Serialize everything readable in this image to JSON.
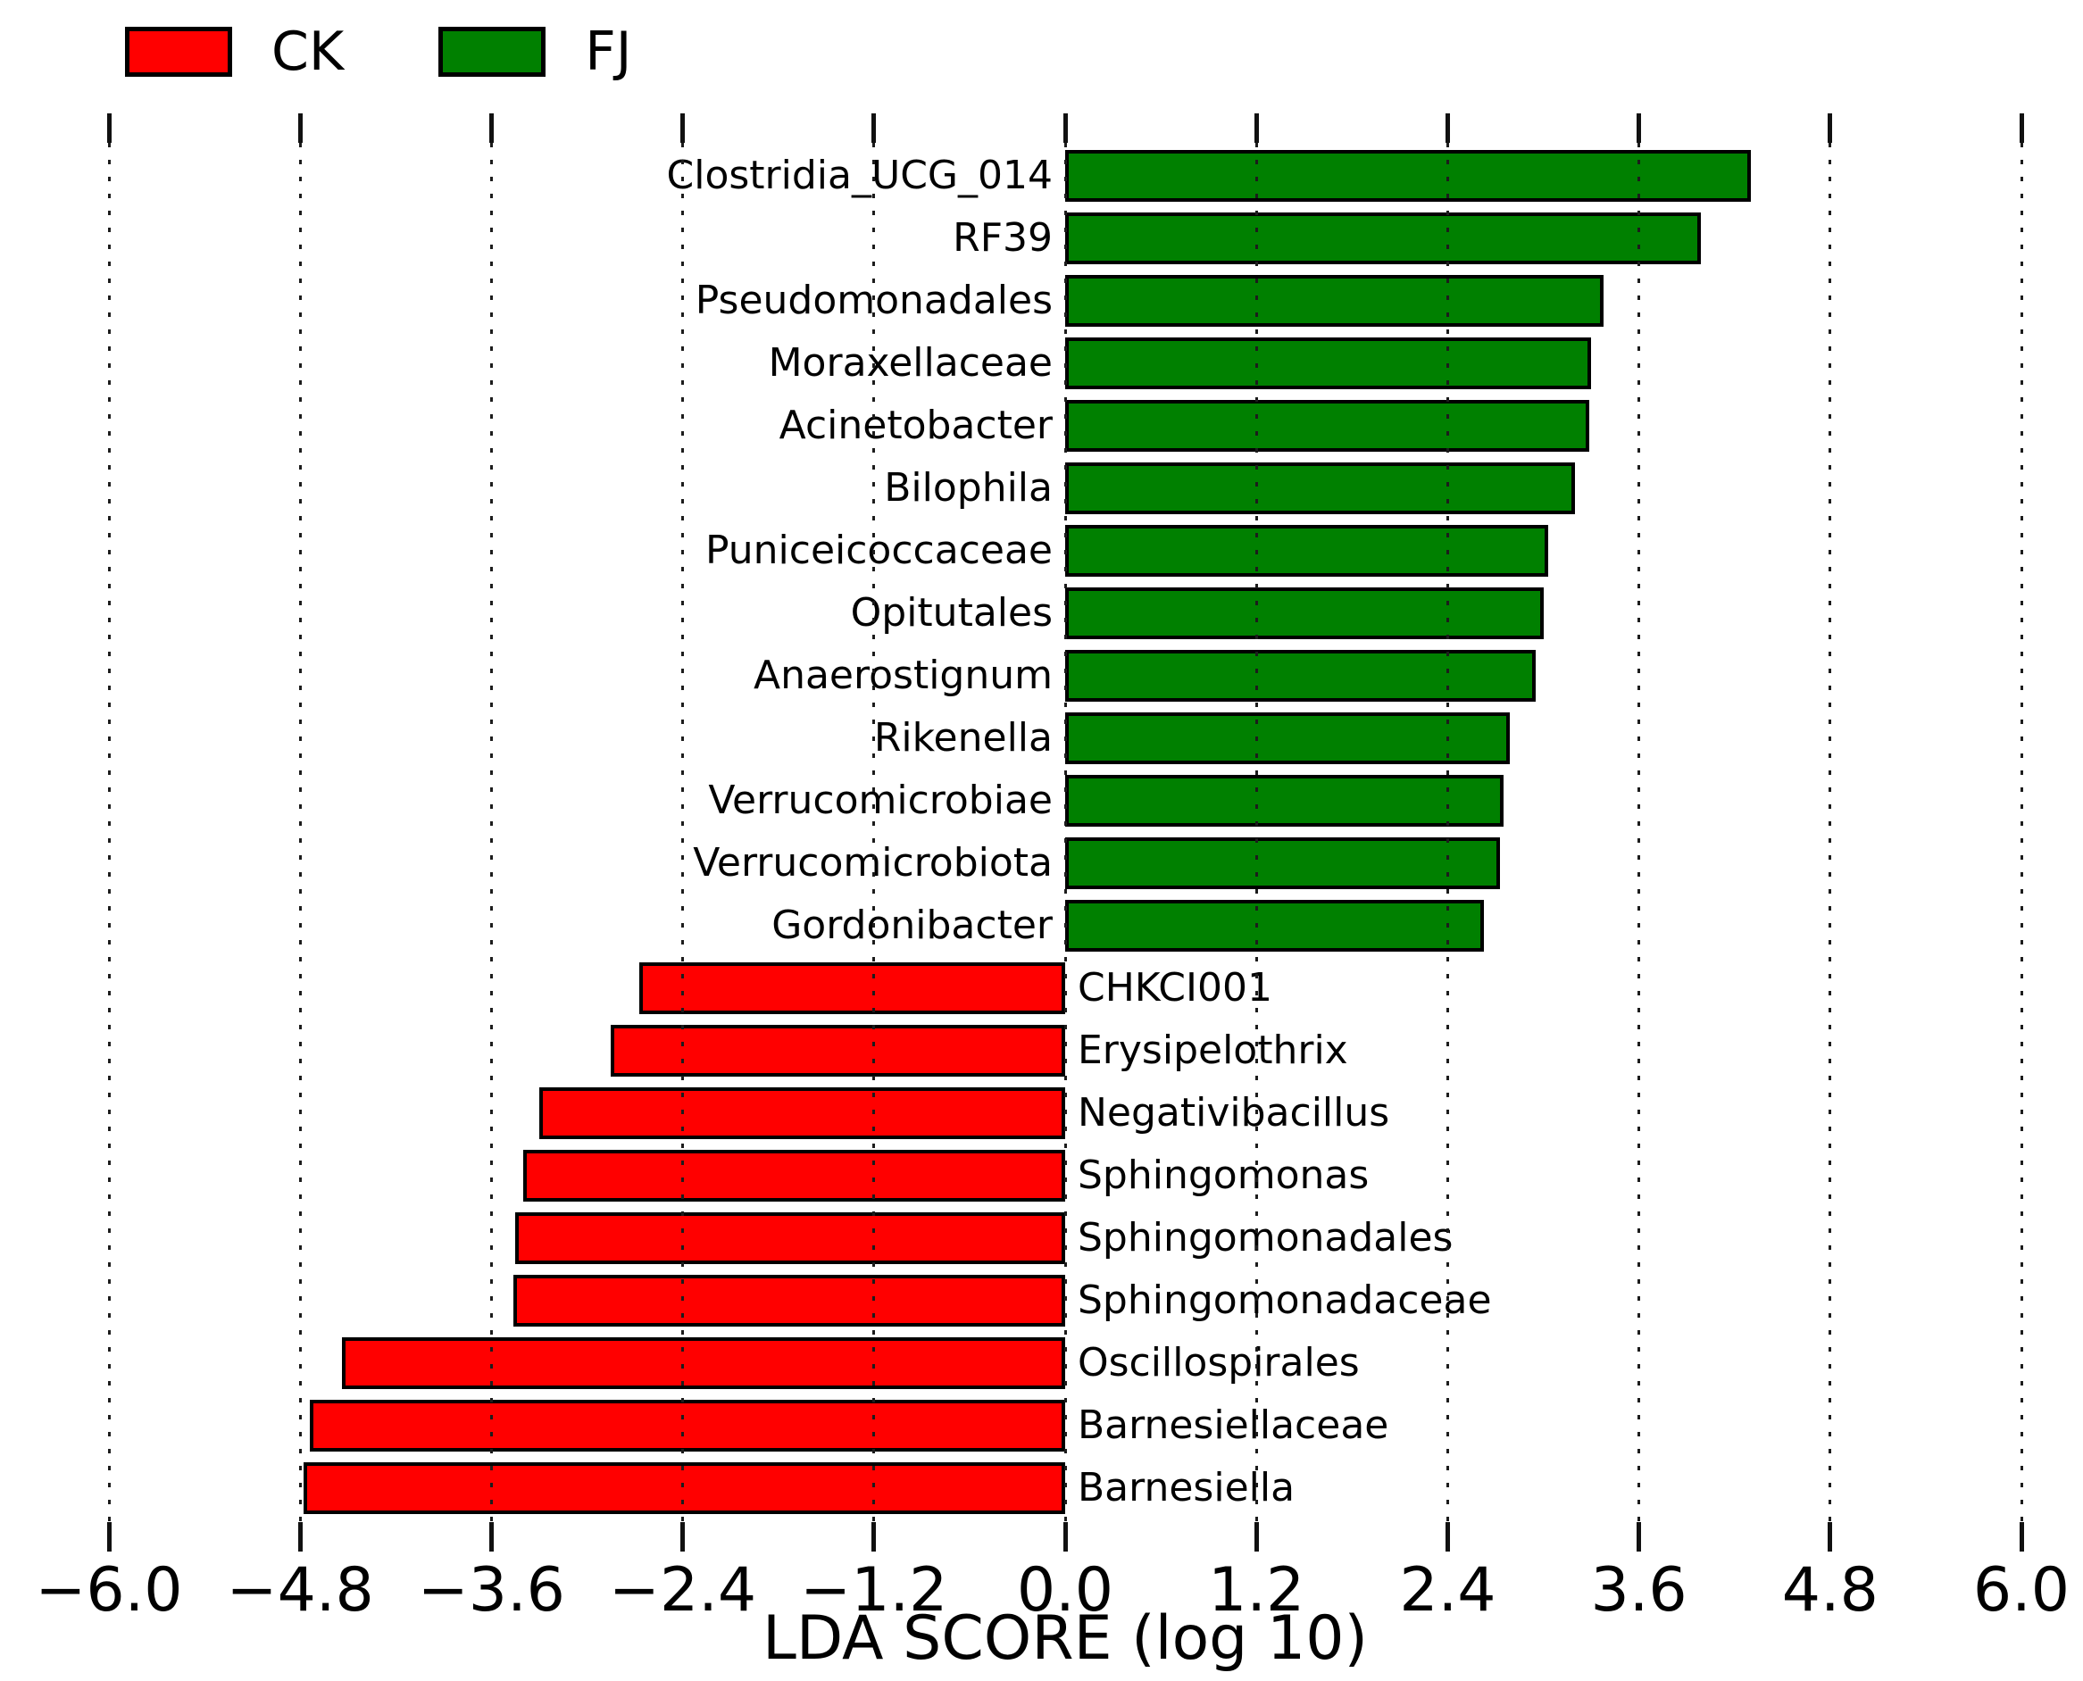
{
  "legend": {
    "items": [
      {
        "label": "CK",
        "color": "#ff0000"
      },
      {
        "label": "FJ",
        "color": "#008000"
      }
    ]
  },
  "chart_data": {
    "type": "bar",
    "orientation": "horizontal",
    "title": "",
    "xlabel": "LDA SCORE (log 10)",
    "ylabel": "",
    "xlim": [
      -6.0,
      6.0
    ],
    "xticks": [
      -6.0,
      -4.8,
      -3.6,
      -2.4,
      -1.2,
      0.0,
      1.2,
      2.4,
      3.6,
      4.8,
      6.0
    ],
    "xtick_labels": [
      "−6.0",
      "−4.8",
      "−3.6",
      "−2.4",
      "−1.2",
      "0.0",
      "1.2",
      "2.4",
      "3.6",
      "4.8",
      "6.0"
    ],
    "grid": "dotted-vertical",
    "legend_position": "top-left",
    "bar_edge_color": "#000000",
    "groups": {
      "CK": {
        "color": "#ff0000",
        "direction": "negative"
      },
      "FJ": {
        "color": "#008000",
        "direction": "positive"
      }
    },
    "bars": [
      {
        "label": "Clostridia_UCG_014",
        "group": "FJ",
        "value": 4.3
      },
      {
        "label": "RF39",
        "group": "FJ",
        "value": 3.99
      },
      {
        "label": "Pseudomonadales",
        "group": "FJ",
        "value": 3.38
      },
      {
        "label": "Moraxellaceae",
        "group": "FJ",
        "value": 3.3
      },
      {
        "label": "Acinetobacter",
        "group": "FJ",
        "value": 3.29
      },
      {
        "label": "Bilophila",
        "group": "FJ",
        "value": 3.2
      },
      {
        "label": "Puniceicoccaceae",
        "group": "FJ",
        "value": 3.03
      },
      {
        "label": "Opitutales",
        "group": "FJ",
        "value": 3.0
      },
      {
        "label": "Anaerostignum",
        "group": "FJ",
        "value": 2.95
      },
      {
        "label": "Rikenella",
        "group": "FJ",
        "value": 2.79
      },
      {
        "label": "Verrucomicrobiae",
        "group": "FJ",
        "value": 2.75
      },
      {
        "label": "Verrucomicrobiota",
        "group": "FJ",
        "value": 2.73
      },
      {
        "label": "Gordonibacter",
        "group": "FJ",
        "value": 2.63
      },
      {
        "label": "CHKCI001",
        "group": "CK",
        "value": -2.67
      },
      {
        "label": "Erysipelothrix",
        "group": "CK",
        "value": -2.85
      },
      {
        "label": "Negativibacillus",
        "group": "CK",
        "value": -3.3
      },
      {
        "label": "Sphingomonas",
        "group": "CK",
        "value": -3.4
      },
      {
        "label": "Sphingomonadales",
        "group": "CK",
        "value": -3.45
      },
      {
        "label": "Sphingomonadaceae",
        "group": "CK",
        "value": -3.46
      },
      {
        "label": "Oscillospirales",
        "group": "CK",
        "value": -4.54
      },
      {
        "label": "Barnesiellaceae",
        "group": "CK",
        "value": -4.74
      },
      {
        "label": "Barnesiella",
        "group": "CK",
        "value": -4.78
      }
    ]
  }
}
